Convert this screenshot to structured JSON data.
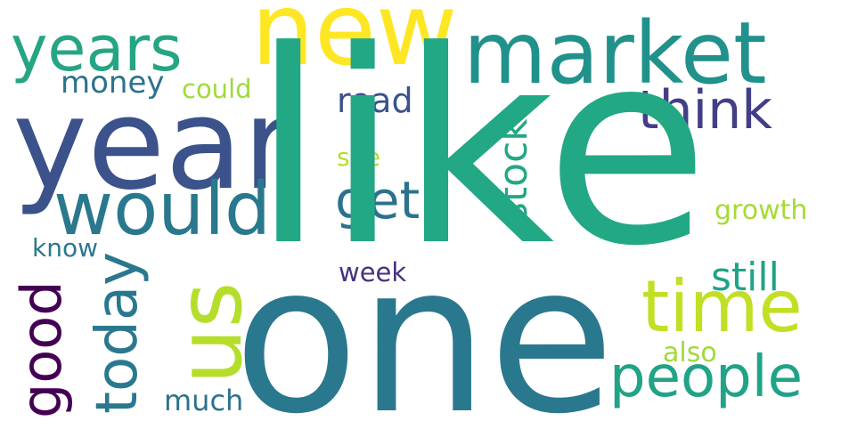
{
  "words": {
    "like": {
      "text": "like",
      "color": "#22a884"
    },
    "one": {
      "text": "one",
      "color": "#2a788e"
    },
    "year": {
      "text": "year",
      "color": "#3b528b"
    },
    "new": {
      "text": "new",
      "color": "#fde725"
    },
    "market": {
      "text": "market",
      "color": "#21918c"
    },
    "years": {
      "text": "years",
      "color": "#26a584"
    },
    "would": {
      "text": "would",
      "color": "#2a788e"
    },
    "us": {
      "text": "us",
      "color": "#b5de2b"
    },
    "time": {
      "text": "time",
      "color": "#c2df23"
    },
    "people": {
      "text": "people",
      "color": "#20a386"
    },
    "think": {
      "text": "think",
      "color": "#433e85"
    },
    "today": {
      "text": "today",
      "color": "#2a788e"
    },
    "good": {
      "text": "good",
      "color": "#440154"
    },
    "get": {
      "text": "get",
      "color": "#2c728e"
    },
    "stock": {
      "text": "stock",
      "color": "#22a884"
    },
    "read": {
      "text": "read",
      "color": "#3b528b"
    },
    "money": {
      "text": "money",
      "color": "#2c728e"
    },
    "could": {
      "text": "could",
      "color": "#a0da39"
    },
    "see": {
      "text": "see",
      "color": "#b5de2b"
    },
    "growth": {
      "text": "growth",
      "color": "#a5db36"
    },
    "know": {
      "text": "know",
      "color": "#2a788e"
    },
    "week": {
      "text": "week",
      "color": "#46327e"
    },
    "still": {
      "text": "still",
      "color": "#20a386"
    },
    "also": {
      "text": "also",
      "color": "#a0da39"
    },
    "much": {
      "text": "much",
      "color": "#2c728e"
    }
  }
}
